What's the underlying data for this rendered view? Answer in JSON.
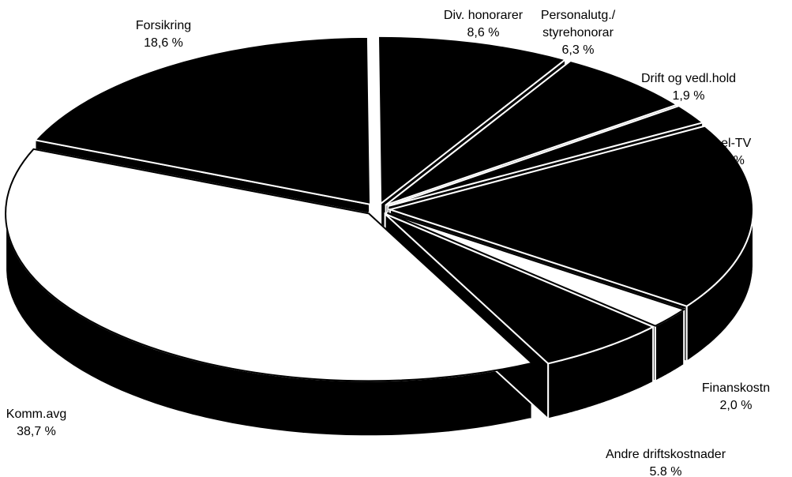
{
  "chart_data": {
    "type": "pie",
    "style": "3d-exploded",
    "title": "",
    "slices": [
      {
        "label": "Div. honorarer",
        "value_text": "8,6 %",
        "value": 8.6,
        "color": "#000000"
      },
      {
        "label": "Personalutg./ styrehonorar",
        "value_text": "6,3 %",
        "value": 6.3,
        "color": "#000000"
      },
      {
        "label": "Drift og vedl.hold",
        "value_text": "1,9 %",
        "value": 1.9,
        "color": "#000000"
      },
      {
        "label": "Kabel-TV",
        "value_text": "18,1 %",
        "value": 18.1,
        "color": "#000000"
      },
      {
        "label": "Finanskostn",
        "value_text": "2,0 %",
        "value": 2.0,
        "color": "#ffffff"
      },
      {
        "label": "Andre driftskostnader",
        "value_text": "5.8 %",
        "value": 5.8,
        "color": "#000000"
      },
      {
        "label": "Komm.avg",
        "value_text": "38,7 %",
        "value": 38.7,
        "color": "#ffffff"
      },
      {
        "label": "Forsikring",
        "value_text": "18,6 %",
        "value": 18.6,
        "color": "#000000"
      }
    ]
  }
}
